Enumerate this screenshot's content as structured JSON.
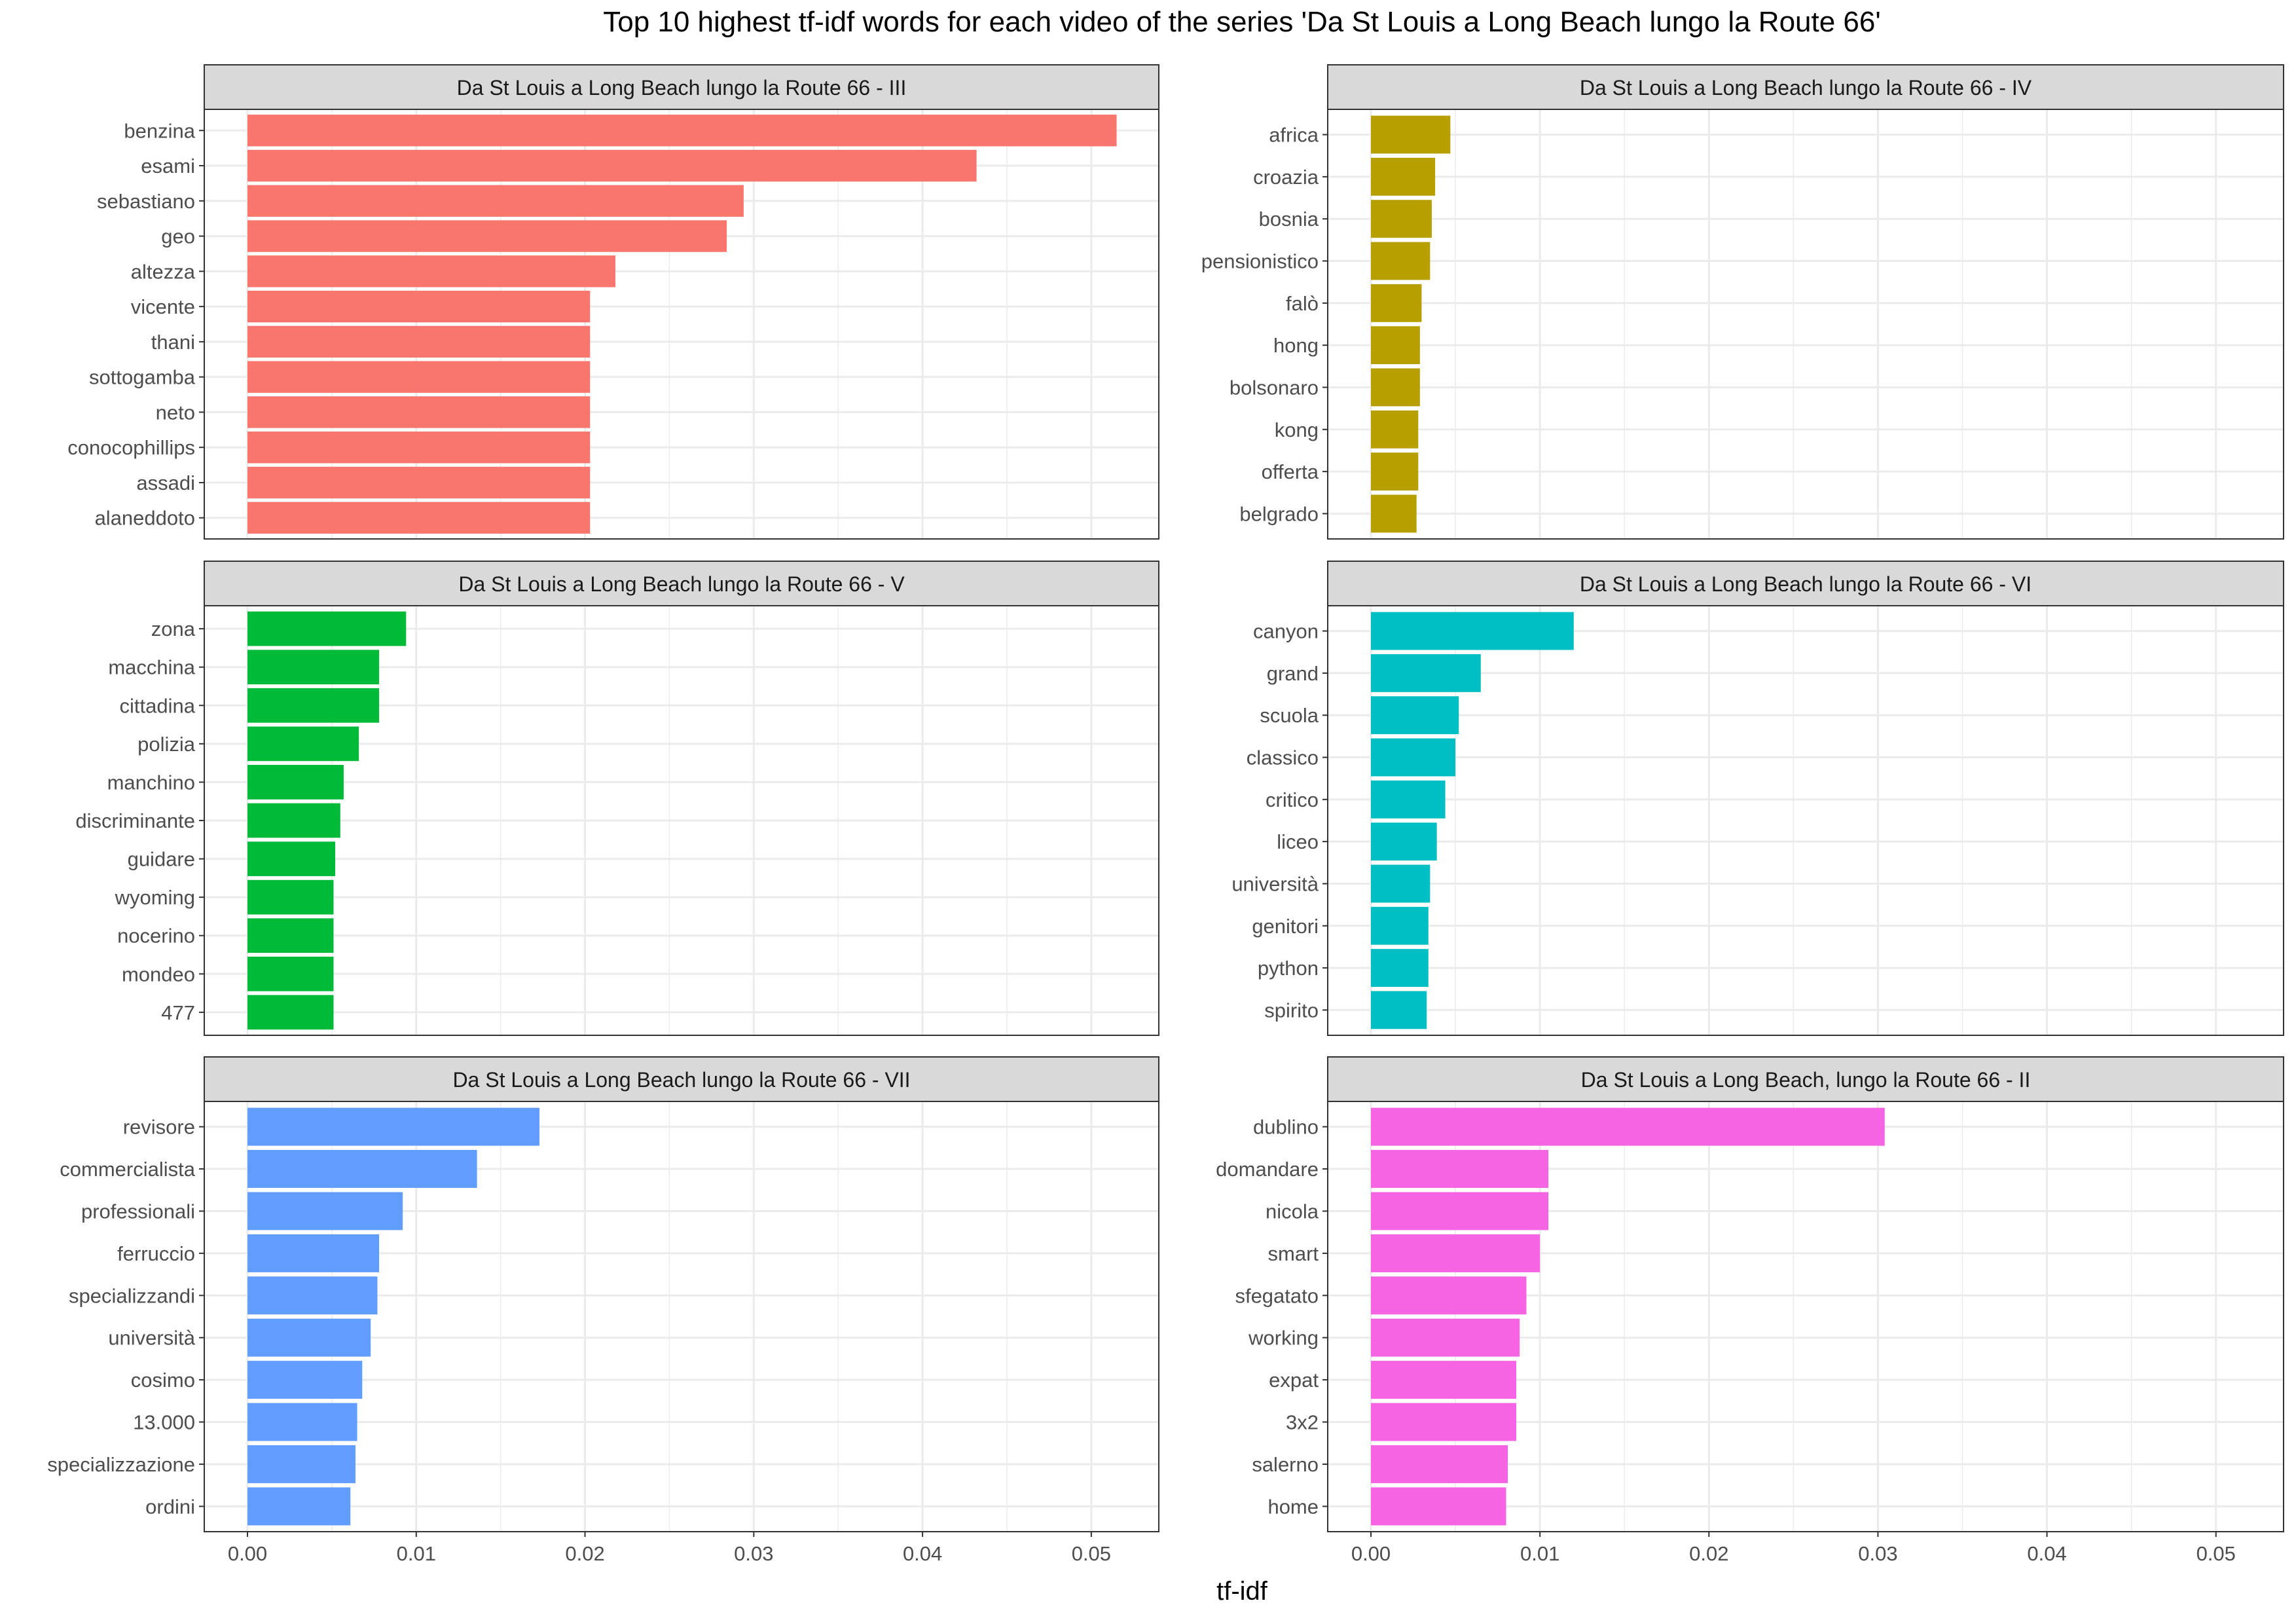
{
  "title": "Top 10 highest tf-idf words for each video of the series 'Da St Louis a Long Beach lungo la Route 66'",
  "xlabel": "tf-idf",
  "chart_data": [
    {
      "type": "bar",
      "orientation": "horizontal",
      "title": "Da St Louis a Long Beach lungo la Route 66 - III",
      "color": "#F8766D",
      "categories": [
        "benzina",
        "esami",
        "sebastiano",
        "geo",
        "altezza",
        "vicente",
        "thani",
        "sottogamba",
        "neto",
        "conocophillips",
        "assadi",
        "alaneddoto"
      ],
      "values": [
        0.0515,
        0.0432,
        0.0294,
        0.0284,
        0.0218,
        0.0203,
        0.0203,
        0.0203,
        0.0203,
        0.0203,
        0.0203,
        0.0203
      ],
      "xlim": [
        0,
        0.054
      ],
      "xticks": [
        0.0,
        0.01,
        0.02,
        0.03,
        0.04,
        0.05
      ],
      "xtick_labels": [
        "0.00",
        "0.01",
        "0.02",
        "0.03",
        "0.04",
        "0.05"
      ]
    },
    {
      "type": "bar",
      "orientation": "horizontal",
      "title": "Da St Louis a Long Beach lungo la Route 66 - IV",
      "color": "#B79F00",
      "categories": [
        "africa",
        "croazia",
        "bosnia",
        "pensionistico",
        "falò",
        "hong",
        "bolsonaro",
        "kong",
        "offerta",
        "belgrado"
      ],
      "values": [
        0.0047,
        0.0038,
        0.0036,
        0.0035,
        0.003,
        0.0029,
        0.0029,
        0.0028,
        0.0028,
        0.0027
      ],
      "xlim": [
        0,
        0.054
      ],
      "xticks": [
        0.0,
        0.01,
        0.02,
        0.03,
        0.04,
        0.05
      ],
      "xtick_labels": [
        "0.00",
        "0.01",
        "0.02",
        "0.03",
        "0.04",
        "0.05"
      ]
    },
    {
      "type": "bar",
      "orientation": "horizontal",
      "title": "Da St Louis a Long Beach lungo la Route 66 - V",
      "color": "#00BA38",
      "categories": [
        "zona",
        "macchina",
        "cittadina",
        "polizia",
        "manchino",
        "discriminante",
        "guidare",
        "wyoming",
        "nocerino",
        "mondeo",
        "477"
      ],
      "values": [
        0.0094,
        0.0078,
        0.0078,
        0.0066,
        0.0057,
        0.0055,
        0.0052,
        0.0051,
        0.0051,
        0.0051,
        0.0051
      ],
      "xlim": [
        0,
        0.054
      ],
      "xticks": [
        0.0,
        0.01,
        0.02,
        0.03,
        0.04,
        0.05
      ],
      "xtick_labels": [
        "0.00",
        "0.01",
        "0.02",
        "0.03",
        "0.04",
        "0.05"
      ]
    },
    {
      "type": "bar",
      "orientation": "horizontal",
      "title": "Da St Louis a Long Beach lungo la Route 66 - VI",
      "color": "#00BFC4",
      "categories": [
        "canyon",
        "grand",
        "scuola",
        "classico",
        "critico",
        "liceo",
        "università",
        "genitori",
        "python",
        "spirito"
      ],
      "values": [
        0.012,
        0.0065,
        0.0052,
        0.005,
        0.0044,
        0.0039,
        0.0035,
        0.0034,
        0.0034,
        0.0033
      ],
      "xlim": [
        0,
        0.054
      ],
      "xticks": [
        0.0,
        0.01,
        0.02,
        0.03,
        0.04,
        0.05
      ],
      "xtick_labels": [
        "0.00",
        "0.01",
        "0.02",
        "0.03",
        "0.04",
        "0.05"
      ]
    },
    {
      "type": "bar",
      "orientation": "horizontal",
      "title": "Da St Louis a Long Beach lungo la Route 66 - VII",
      "color": "#619CFF",
      "categories": [
        "revisore",
        "commercialista",
        "professionali",
        "ferruccio",
        "specializzandi",
        "università",
        "cosimo",
        "13.000",
        "specializzazione",
        "ordini"
      ],
      "values": [
        0.0173,
        0.0136,
        0.0092,
        0.0078,
        0.0077,
        0.0073,
        0.0068,
        0.0065,
        0.0064,
        0.0061
      ],
      "xlim": [
        0,
        0.054
      ],
      "xticks": [
        0.0,
        0.01,
        0.02,
        0.03,
        0.04,
        0.05
      ],
      "xtick_labels": [
        "0.00",
        "0.01",
        "0.02",
        "0.03",
        "0.04",
        "0.05"
      ]
    },
    {
      "type": "bar",
      "orientation": "horizontal",
      "title": "Da St Louis a Long Beach, lungo la Route 66 - II",
      "color": "#F564E3",
      "categories": [
        "dublino",
        "domandare",
        "nicola",
        "smart",
        "sfegatato",
        "working",
        "expat",
        "3x2",
        "salerno",
        "home"
      ],
      "values": [
        0.0304,
        0.0105,
        0.0105,
        0.01,
        0.0092,
        0.0088,
        0.0086,
        0.0086,
        0.0081,
        0.008
      ],
      "xlim": [
        0,
        0.054
      ],
      "xticks": [
        0.0,
        0.01,
        0.02,
        0.03,
        0.04,
        0.05
      ],
      "xtick_labels": [
        "0.00",
        "0.01",
        "0.02",
        "0.03",
        "0.04",
        "0.05"
      ]
    }
  ]
}
